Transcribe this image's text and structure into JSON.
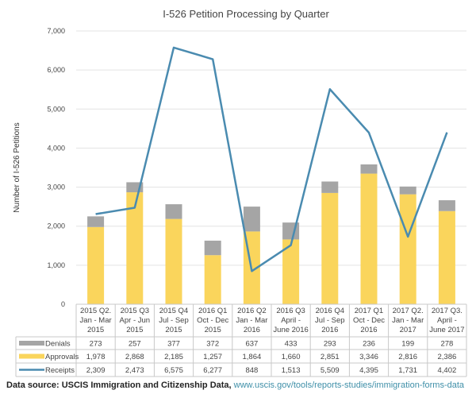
{
  "chart_data": {
    "type": "bar",
    "title": "I-526 Petition Processing by Quarter",
    "ylabel": "Number of I-526 Petitions",
    "xlabel": "",
    "ylim": [
      0,
      7000
    ],
    "yticks": [
      "0",
      "1,000",
      "2,000",
      "3,000",
      "4,000",
      "5,000",
      "6,000",
      "7,000"
    ],
    "grid": true,
    "stacked": true,
    "categories": [
      [
        "2015 Q2.",
        "Jan - Mar",
        "2015"
      ],
      [
        "2015 Q3",
        "Apr - Jun",
        "2015"
      ],
      [
        "2015 Q4",
        "Jul - Sep",
        "2015"
      ],
      [
        "2016 Q1",
        "Oct - Dec",
        "2015"
      ],
      [
        "2016 Q2",
        "Jan - Mar",
        "2016"
      ],
      [
        "2016 Q3",
        "April -",
        "June 2016"
      ],
      [
        "2016 Q4",
        "Jul - Sep",
        "2016"
      ],
      [
        "2017 Q1",
        "Oct - Dec",
        "2016"
      ],
      [
        "2017 Q2.",
        "Jan - Mar",
        "2017"
      ],
      [
        "2017 Q3.",
        "April -",
        "June 2017"
      ]
    ],
    "series": [
      {
        "name": "Denials",
        "type": "bar",
        "color": "#a5a5a5",
        "values": [
          273,
          257,
          377,
          372,
          637,
          433,
          293,
          236,
          199,
          278
        ],
        "labels": [
          "273",
          "257",
          "377",
          "372",
          "637",
          "433",
          "293",
          "236",
          "199",
          "278"
        ]
      },
      {
        "name": "Approvals",
        "type": "bar",
        "color": "#fad55c",
        "values": [
          1978,
          2868,
          2185,
          1257,
          1864,
          1660,
          2851,
          3346,
          2816,
          2386
        ],
        "labels": [
          "1,978",
          "2,868",
          "2,185",
          "1,257",
          "1,864",
          "1,660",
          "2,851",
          "3,346",
          "2,816",
          "2,386"
        ]
      },
      {
        "name": "Receipts",
        "type": "line",
        "color": "#4a8bb0",
        "values": [
          2309,
          2473,
          6575,
          6277,
          848,
          1513,
          5509,
          4395,
          1731,
          4402
        ],
        "labels": [
          "2,309",
          "2,473",
          "6,575",
          "6,277",
          "848",
          "1,513",
          "5,509",
          "4,395",
          "1,731",
          "4,402"
        ]
      }
    ],
    "legend": "data-table"
  },
  "source": {
    "label": "Data source: USCIS Immigration and Citizenship Data, ",
    "link": "www.uscis.gov/tools/reports-studies/immigration-forms-data"
  }
}
